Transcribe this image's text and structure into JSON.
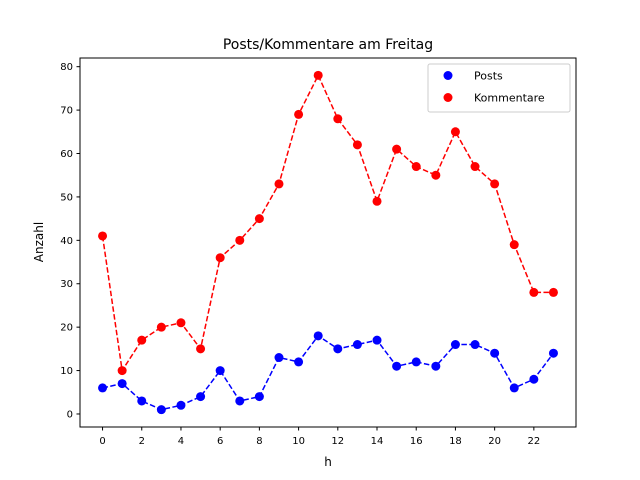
{
  "chart_data": {
    "type": "line",
    "title": "Posts/Kommentare am Freitag",
    "xlabel": "h",
    "ylabel": "Anzahl",
    "x": [
      0,
      1,
      2,
      3,
      4,
      5,
      6,
      7,
      8,
      9,
      10,
      11,
      12,
      13,
      14,
      15,
      16,
      17,
      18,
      19,
      20,
      21,
      22,
      23
    ],
    "xticks": [
      "0",
      "2",
      "4",
      "6",
      "8",
      "10",
      "12",
      "14",
      "16",
      "18",
      "20",
      "22"
    ],
    "yticks": [
      "0",
      "10",
      "20",
      "30",
      "40",
      "50",
      "60",
      "70",
      "80"
    ],
    "xlim": [
      -1.15,
      24.15
    ],
    "ylim": [
      -3,
      82
    ],
    "grid": false,
    "legend_position": "top-right",
    "line_style": "dashed",
    "marker": "circle",
    "series": [
      {
        "name": "Posts",
        "color": "#0000ff",
        "values": [
          6,
          7,
          3,
          1,
          2,
          4,
          10,
          3,
          4,
          13,
          12,
          18,
          15,
          16,
          17,
          11,
          12,
          11,
          16,
          16,
          14,
          6,
          8,
          14
        ]
      },
      {
        "name": "Kommentare",
        "color": "#ff0000",
        "values": [
          41,
          10,
          17,
          20,
          21,
          15,
          36,
          40,
          45,
          53,
          69,
          78,
          68,
          62,
          49,
          61,
          57,
          55,
          65,
          57,
          53,
          39,
          28,
          28
        ]
      }
    ]
  }
}
